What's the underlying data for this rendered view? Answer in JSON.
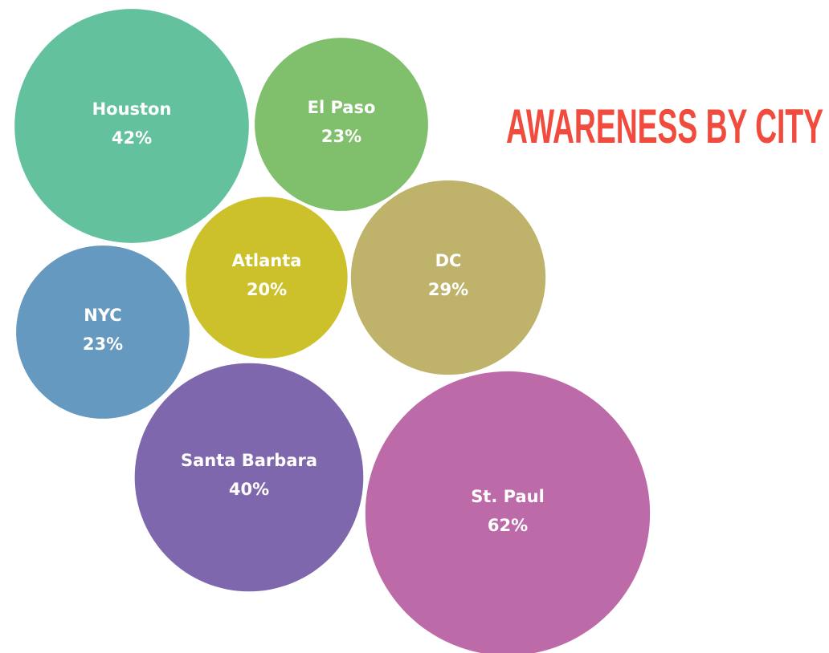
{
  "chart_data": {
    "type": "bubble",
    "title": "AWARENESS BY CITY",
    "categories": [
      "Houston",
      "El Paso",
      "Atlanta",
      "DC",
      "NYC",
      "Santa Barbara",
      "St. Paul"
    ],
    "values": [
      42,
      23,
      20,
      29,
      23,
      40,
      62
    ],
    "value_labels": [
      "42%",
      "23%",
      "20%",
      "29%",
      "23%",
      "40%",
      "62%"
    ],
    "colors": [
      "#63c19d",
      "#80c06c",
      "#cdc12b",
      "#bfb26a",
      "#6699bf",
      "#7f67ae",
      "#bd6aa8"
    ],
    "title_color": "#f04b3c"
  }
}
